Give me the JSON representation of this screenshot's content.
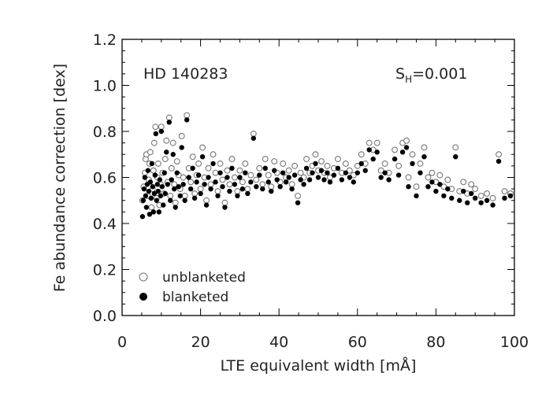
{
  "chart_data": {
    "type": "scatter",
    "xlabel": "LTE equivalent width [mÅ]",
    "ylabel": "Fe abundance correction [dex]",
    "xlim": [
      0,
      100
    ],
    "ylim": [
      0,
      1.2
    ],
    "x_ticks": [
      "0",
      "20",
      "40",
      "60",
      "80",
      "100"
    ],
    "y_ticks": [
      "0.0",
      "0.2",
      "0.4",
      "0.6",
      "0.8",
      "1.0",
      "1.2"
    ],
    "grid": false,
    "annotations": {
      "star": "HD 140283",
      "sh_main": "S",
      "sh_sub": "H",
      "sh_value": "=0.001"
    },
    "legend_position": "bottom-left",
    "series": [
      {
        "name": "unblanketed",
        "marker": "open-circle",
        "color": "#777777",
        "points": [
          [
            5.2,
            0.5
          ],
          [
            5.5,
            0.56
          ],
          [
            5.8,
            0.62
          ],
          [
            6.0,
            0.68
          ],
          [
            6.2,
            0.7
          ],
          [
            6.5,
            0.52
          ],
          [
            6.8,
            0.59
          ],
          [
            7.0,
            0.66
          ],
          [
            7.2,
            0.71
          ],
          [
            7.5,
            0.47
          ],
          [
            7.8,
            0.55
          ],
          [
            8.0,
            0.63
          ],
          [
            8.2,
            0.75
          ],
          [
            8.5,
            0.82
          ],
          [
            8.8,
            0.51
          ],
          [
            9.0,
            0.6
          ],
          [
            9.2,
            0.66
          ],
          [
            9.5,
            0.48
          ],
          [
            9.8,
            0.57
          ],
          [
            10.0,
            0.82
          ],
          [
            10.3,
            0.62
          ],
          [
            10.6,
            0.53
          ],
          [
            11.0,
            0.68
          ],
          [
            11.3,
            0.76
          ],
          [
            11.6,
            0.58
          ],
          [
            12.0,
            0.86
          ],
          [
            12.3,
            0.52
          ],
          [
            12.6,
            0.64
          ],
          [
            13.0,
            0.75
          ],
          [
            13.3,
            0.57
          ],
          [
            13.6,
            0.49
          ],
          [
            14.0,
            0.67
          ],
          [
            14.4,
            0.61
          ],
          [
            14.8,
            0.55
          ],
          [
            15.2,
            0.78
          ],
          [
            15.6,
            0.6
          ],
          [
            16.0,
            0.52
          ],
          [
            16.5,
            0.87
          ],
          [
            17.0,
            0.64
          ],
          [
            17.5,
            0.58
          ],
          [
            18.0,
            0.69
          ],
          [
            18.5,
            0.53
          ],
          [
            19.0,
            0.61
          ],
          [
            19.5,
            0.66
          ],
          [
            20.0,
            0.55
          ],
          [
            20.5,
            0.73
          ],
          [
            21.0,
            0.6
          ],
          [
            21.5,
            0.5
          ],
          [
            22.0,
            0.64
          ],
          [
            22.6,
            0.57
          ],
          [
            23.2,
            0.7
          ],
          [
            23.8,
            0.62
          ],
          [
            24.4,
            0.54
          ],
          [
            25.0,
            0.66
          ],
          [
            25.6,
            0.59
          ],
          [
            26.2,
            0.49
          ],
          [
            26.8,
            0.63
          ],
          [
            27.4,
            0.57
          ],
          [
            28.0,
            0.68
          ],
          [
            28.7,
            0.6
          ],
          [
            29.4,
            0.54
          ],
          [
            30.0,
            0.63
          ],
          [
            30.7,
            0.58
          ],
          [
            31.4,
            0.66
          ],
          [
            32.0,
            0.55
          ],
          [
            32.8,
            0.61
          ],
          [
            33.5,
            0.79
          ],
          [
            34.2,
            0.59
          ],
          [
            35.0,
            0.64
          ],
          [
            35.8,
            0.57
          ],
          [
            36.5,
            0.68
          ],
          [
            37.3,
            0.61
          ],
          [
            38.0,
            0.56
          ],
          [
            38.8,
            0.67
          ],
          [
            39.5,
            0.62
          ],
          [
            40.3,
            0.58
          ],
          [
            41.0,
            0.66
          ],
          [
            41.8,
            0.6
          ],
          [
            42.5,
            0.63
          ],
          [
            43.3,
            0.57
          ],
          [
            44.0,
            0.65
          ],
          [
            44.8,
            0.52
          ],
          [
            45.5,
            0.62
          ],
          [
            46.3,
            0.6
          ],
          [
            47.0,
            0.68
          ],
          [
            47.8,
            0.62
          ],
          [
            48.5,
            0.65
          ],
          [
            49.3,
            0.7
          ],
          [
            50.0,
            0.63
          ],
          [
            50.8,
            0.67
          ],
          [
            51.5,
            0.62
          ],
          [
            52.3,
            0.65
          ],
          [
            53.0,
            0.6
          ],
          [
            54.0,
            0.64
          ],
          [
            55.0,
            0.68
          ],
          [
            56.0,
            0.62
          ],
          [
            57.0,
            0.66
          ],
          [
            58.0,
            0.63
          ],
          [
            59.0,
            0.61
          ],
          [
            60.0,
            0.65
          ],
          [
            61.0,
            0.7
          ],
          [
            62.0,
            0.66
          ],
          [
            63.0,
            0.75
          ],
          [
            64.0,
            0.72
          ],
          [
            65.0,
            0.75
          ],
          [
            66.0,
            0.63
          ],
          [
            67.0,
            0.66
          ],
          [
            68.0,
            0.62
          ],
          [
            69.5,
            0.72
          ],
          [
            70.5,
            0.65
          ],
          [
            71.5,
            0.75
          ],
          [
            72.5,
            0.76
          ],
          [
            73.0,
            0.6
          ],
          [
            74.0,
            0.7
          ],
          [
            75.0,
            0.56
          ],
          [
            76.0,
            0.66
          ],
          [
            77.0,
            0.73
          ],
          [
            78.0,
            0.6
          ],
          [
            79.0,
            0.62
          ],
          [
            80.0,
            0.58
          ],
          [
            81.0,
            0.61
          ],
          [
            82.0,
            0.56
          ],
          [
            83.0,
            0.59
          ],
          [
            84.0,
            0.55
          ],
          [
            85.0,
            0.73
          ],
          [
            86.0,
            0.54
          ],
          [
            87.0,
            0.58
          ],
          [
            88.0,
            0.53
          ],
          [
            89.0,
            0.57
          ],
          [
            90.0,
            0.55
          ],
          [
            91.5,
            0.52
          ],
          [
            93.0,
            0.53
          ],
          [
            94.5,
            0.51
          ],
          [
            96.0,
            0.7
          ],
          [
            97.5,
            0.54
          ],
          [
            99.0,
            0.53
          ]
        ]
      },
      {
        "name": "blanketed",
        "marker": "filled-circle",
        "color": "#000000",
        "points": [
          [
            5.2,
            0.43
          ],
          [
            5.4,
            0.5
          ],
          [
            5.6,
            0.55
          ],
          [
            5.8,
            0.6
          ],
          [
            6.0,
            0.52
          ],
          [
            6.2,
            0.47
          ],
          [
            6.4,
            0.57
          ],
          [
            6.6,
            0.63
          ],
          [
            6.8,
            0.54
          ],
          [
            7.0,
            0.44
          ],
          [
            7.2,
            0.58
          ],
          [
            7.4,
            0.51
          ],
          [
            7.6,
            0.66
          ],
          [
            7.8,
            0.56
          ],
          [
            8.0,
            0.45
          ],
          [
            8.2,
            0.53
          ],
          [
            8.4,
            0.61
          ],
          [
            8.6,
            0.79
          ],
          [
            8.8,
            0.5
          ],
          [
            9.0,
            0.57
          ],
          [
            9.2,
            0.54
          ],
          [
            9.4,
            0.45
          ],
          [
            9.6,
            0.59
          ],
          [
            9.8,
            0.52
          ],
          [
            10.0,
            0.8
          ],
          [
            10.2,
            0.56
          ],
          [
            10.5,
            0.48
          ],
          [
            10.8,
            0.62
          ],
          [
            11.0,
            0.53
          ],
          [
            11.3,
            0.71
          ],
          [
            11.6,
            0.57
          ],
          [
            12.0,
            0.84
          ],
          [
            12.3,
            0.5
          ],
          [
            12.6,
            0.59
          ],
          [
            13.0,
            0.7
          ],
          [
            13.3,
            0.55
          ],
          [
            13.6,
            0.47
          ],
          [
            14.0,
            0.62
          ],
          [
            14.4,
            0.56
          ],
          [
            14.8,
            0.52
          ],
          [
            15.2,
            0.73
          ],
          [
            15.6,
            0.57
          ],
          [
            16.0,
            0.5
          ],
          [
            16.5,
            0.85
          ],
          [
            17.0,
            0.6
          ],
          [
            17.5,
            0.55
          ],
          [
            18.0,
            0.64
          ],
          [
            18.5,
            0.51
          ],
          [
            19.0,
            0.58
          ],
          [
            19.5,
            0.61
          ],
          [
            20.0,
            0.53
          ],
          [
            20.5,
            0.69
          ],
          [
            21.0,
            0.57
          ],
          [
            21.5,
            0.48
          ],
          [
            22.0,
            0.6
          ],
          [
            22.6,
            0.55
          ],
          [
            23.2,
            0.66
          ],
          [
            23.8,
            0.58
          ],
          [
            24.4,
            0.52
          ],
          [
            25.0,
            0.62
          ],
          [
            25.6,
            0.56
          ],
          [
            26.2,
            0.47
          ],
          [
            26.8,
            0.6
          ],
          [
            27.4,
            0.54
          ],
          [
            28.0,
            0.64
          ],
          [
            28.7,
            0.57
          ],
          [
            29.4,
            0.52
          ],
          [
            30.0,
            0.6
          ],
          [
            30.7,
            0.55
          ],
          [
            31.4,
            0.62
          ],
          [
            32.0,
            0.53
          ],
          [
            32.8,
            0.58
          ],
          [
            33.5,
            0.77
          ],
          [
            34.2,
            0.56
          ],
          [
            35.0,
            0.61
          ],
          [
            35.8,
            0.55
          ],
          [
            36.5,
            0.64
          ],
          [
            37.3,
            0.58
          ],
          [
            38.0,
            0.54
          ],
          [
            38.8,
            0.63
          ],
          [
            39.5,
            0.59
          ],
          [
            40.3,
            0.56
          ],
          [
            41.0,
            0.62
          ],
          [
            41.8,
            0.58
          ],
          [
            42.5,
            0.6
          ],
          [
            43.3,
            0.55
          ],
          [
            44.0,
            0.61
          ],
          [
            44.8,
            0.49
          ],
          [
            45.5,
            0.59
          ],
          [
            46.3,
            0.57
          ],
          [
            47.0,
            0.64
          ],
          [
            47.8,
            0.59
          ],
          [
            48.5,
            0.62
          ],
          [
            49.3,
            0.66
          ],
          [
            50.0,
            0.6
          ],
          [
            50.8,
            0.63
          ],
          [
            51.5,
            0.59
          ],
          [
            52.3,
            0.62
          ],
          [
            53.0,
            0.58
          ],
          [
            54.0,
            0.61
          ],
          [
            55.0,
            0.64
          ],
          [
            56.0,
            0.59
          ],
          [
            57.0,
            0.62
          ],
          [
            58.0,
            0.6
          ],
          [
            59.0,
            0.58
          ],
          [
            60.0,
            0.62
          ],
          [
            61.0,
            0.66
          ],
          [
            62.0,
            0.63
          ],
          [
            63.0,
            0.72
          ],
          [
            64.0,
            0.68
          ],
          [
            65.0,
            0.71
          ],
          [
            66.0,
            0.6
          ],
          [
            67.0,
            0.62
          ],
          [
            68.0,
            0.59
          ],
          [
            69.5,
            0.68
          ],
          [
            70.5,
            0.61
          ],
          [
            71.5,
            0.71
          ],
          [
            72.5,
            0.73
          ],
          [
            73.0,
            0.56
          ],
          [
            74.0,
            0.66
          ],
          [
            75.0,
            0.52
          ],
          [
            76.0,
            0.62
          ],
          [
            77.0,
            0.69
          ],
          [
            78.0,
            0.56
          ],
          [
            79.0,
            0.58
          ],
          [
            80.0,
            0.54
          ],
          [
            81.0,
            0.57
          ],
          [
            82.0,
            0.52
          ],
          [
            83.0,
            0.55
          ],
          [
            84.0,
            0.51
          ],
          [
            85.0,
            0.69
          ],
          [
            86.0,
            0.5
          ],
          [
            87.0,
            0.54
          ],
          [
            88.0,
            0.49
          ],
          [
            89.0,
            0.53
          ],
          [
            90.0,
            0.51
          ],
          [
            91.5,
            0.49
          ],
          [
            93.0,
            0.5
          ],
          [
            94.5,
            0.48
          ],
          [
            96.0,
            0.67
          ],
          [
            97.5,
            0.51
          ],
          [
            99.0,
            0.52
          ]
        ]
      }
    ]
  }
}
